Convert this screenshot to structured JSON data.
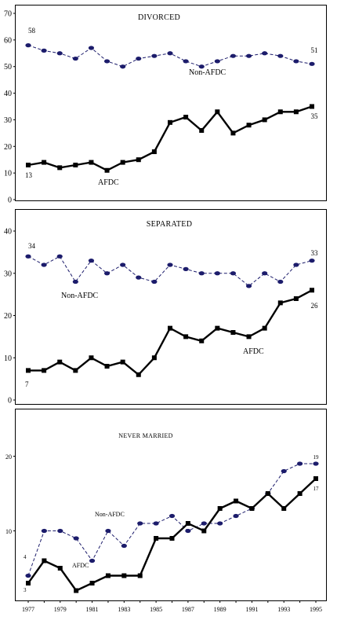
{
  "chart_data": [
    {
      "type": "line",
      "title": "DIVORCED",
      "x": [
        1977,
        1978,
        1979,
        1980,
        1981,
        1982,
        1983,
        1984,
        1985,
        1986,
        1987,
        1988,
        1989,
        1990,
        1991,
        1992,
        1993,
        1994,
        1995
      ],
      "ylim": [
        0,
        70
      ],
      "y_ticks": [
        "0",
        "10",
        "20",
        "30",
        "40",
        "50",
        "60",
        "70"
      ],
      "series": [
        {
          "name": "Non-AFDC",
          "color": "#1c1c6b",
          "values": [
            58,
            56,
            55,
            53,
            57,
            52,
            50,
            53,
            54,
            55,
            52,
            50,
            52,
            54,
            54,
            55,
            54,
            52,
            51
          ],
          "start_label": "58",
          "end_label": "51"
        },
        {
          "name": "AFDC",
          "color": "#000000",
          "values": [
            13,
            14,
            12,
            13,
            14,
            11,
            14,
            15,
            18,
            29,
            31,
            26,
            33,
            25,
            28,
            30,
            33,
            33,
            35
          ],
          "start_label": "13",
          "end_label": "35"
        }
      ]
    },
    {
      "type": "line",
      "title": "SEPARATED",
      "x": [
        1977,
        1978,
        1979,
        1980,
        1981,
        1982,
        1983,
        1984,
        1985,
        1986,
        1987,
        1988,
        1989,
        1990,
        1991,
        1992,
        1993,
        1994,
        1995
      ],
      "ylim": [
        0,
        40
      ],
      "y_ticks": [
        "0",
        "10",
        "20",
        "30",
        "40"
      ],
      "series": [
        {
          "name": "Non-AFDC",
          "color": "#1c1c6b",
          "values": [
            34,
            32,
            34,
            28,
            33,
            30,
            32,
            29,
            28,
            32,
            31,
            30,
            30,
            30,
            27,
            30,
            28,
            32,
            33
          ],
          "start_label": "34",
          "end_label": "33"
        },
        {
          "name": "AFDC",
          "color": "#000000",
          "values": [
            7,
            7,
            9,
            7,
            10,
            8,
            9,
            6,
            10,
            17,
            15,
            14,
            17,
            16,
            15,
            17,
            23,
            24,
            26
          ],
          "start_label": "7",
          "end_label": "26"
        }
      ]
    },
    {
      "type": "line",
      "title": "NEVER MARRIED",
      "x": [
        1977,
        1978,
        1979,
        1980,
        1981,
        1982,
        1983,
        1984,
        1985,
        1986,
        1987,
        1988,
        1989,
        1990,
        1991,
        1992,
        1993,
        1994,
        1995
      ],
      "x_tick_labels": [
        "1977",
        "1979",
        "1981",
        "1983",
        "1985",
        "1987",
        "1989",
        "1991",
        "1993",
        "1995"
      ],
      "ylim": [
        1,
        21
      ],
      "y_ticks": [
        "10",
        "20"
      ],
      "series": [
        {
          "name": "Non-AFDC",
          "color": "#1c1c6b",
          "values": [
            4,
            10,
            10,
            9,
            6,
            10,
            8,
            11,
            11,
            12,
            10,
            11,
            11,
            12,
            13,
            15,
            18,
            19,
            19
          ],
          "start_label": "4",
          "end_label": "19"
        },
        {
          "name": "AFDC",
          "color": "#000000",
          "values": [
            3,
            6,
            5,
            2,
            3,
            4,
            4,
            4,
            9,
            9,
            11,
            10,
            13,
            14,
            13,
            15,
            13,
            15,
            17
          ],
          "start_label": "3",
          "end_label": "17"
        }
      ]
    }
  ]
}
